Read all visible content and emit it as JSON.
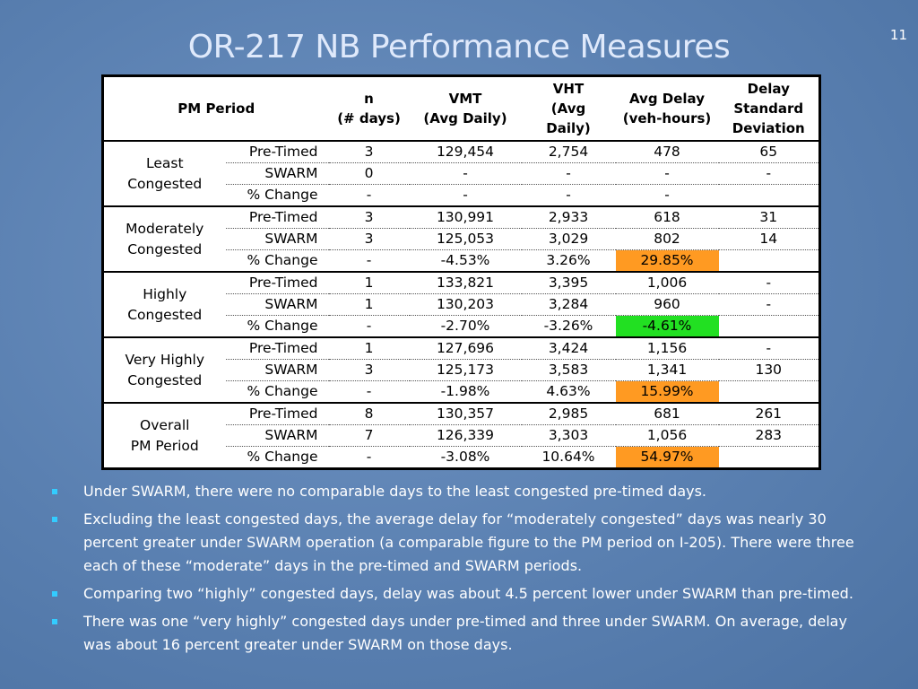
{
  "slide_number": "11",
  "title": "OR-217 NB Performance Measures",
  "table": {
    "header": [
      "PM Period",
      "n\n(# days)",
      "VMT\n(Avg Daily)",
      "VHT\n(Avg\nDaily)",
      "Avg Delay\n(veh-hours)",
      "Delay\nStandard\nDeviation"
    ],
    "groups": [
      {
        "label": "Least\nCongested",
        "rows": [
          [
            "Pre-Timed",
            "3",
            "129,454",
            "2,754",
            "478",
            "65"
          ],
          [
            "SWARM",
            "0",
            "-",
            "-",
            "-",
            "-"
          ],
          [
            "% Change",
            "-",
            "-",
            "-",
            "-"
          ]
        ]
      },
      {
        "label": "Moderately\nCongested",
        "rows": [
          [
            "Pre-Timed",
            "3",
            "130,991",
            "2,933",
            "618",
            "31"
          ],
          [
            "SWARM",
            "3",
            "125,053",
            "3,029",
            "802",
            "14"
          ],
          [
            "% Change",
            "-",
            "-4.53%",
            "3.26%",
            "29.85%"
          ]
        ]
      },
      {
        "label": "Highly\nCongested",
        "rows": [
          [
            "Pre-Timed",
            "1",
            "133,821",
            "3,395",
            "1,006",
            "-"
          ],
          [
            "SWARM",
            "1",
            "130,203",
            "3,284",
            "960",
            "-"
          ],
          [
            "% Change",
            "-",
            "-2.70%",
            "-3.26%",
            "-4.61%"
          ]
        ]
      },
      {
        "label": "Very Highly\nCongested",
        "rows": [
          [
            "Pre-Timed",
            "1",
            "127,696",
            "3,424",
            "1,156",
            "-"
          ],
          [
            "SWARM",
            "3",
            "125,173",
            "3,583",
            "1,341",
            "130"
          ],
          [
            "% Change",
            "-",
            "-1.98%",
            "4.63%",
            "15.99%"
          ]
        ]
      },
      {
        "label": "Overall\nPM Period",
        "rows": [
          [
            "Pre-Timed",
            "8",
            "130,357",
            "2,985",
            "681",
            "261"
          ],
          [
            "SWARM",
            "7",
            "126,339",
            "3,303",
            "1,056",
            "283"
          ],
          [
            "% Change",
            "-",
            "-3.08%",
            "10.64%",
            "54.97%"
          ]
        ]
      }
    ]
  },
  "bullets": [
    "Under SWARM, there were no comparable days to the least congested pre-timed days.",
    "Excluding the least congested days, the average delay for “moderately congested” days was nearly 30 percent greater under SWARM operation (a comparable figure to the PM period on I-205). There were three each of these “moderate” days in the pre-timed and SWARM periods.",
    "Comparing two “highly” congested days, delay was about 4.5 percent lower under SWARM than pre-timed.",
    "There was one “very highly” congested days under pre-timed and three under SWARM. On average, delay was about 16 percent greater under SWARM on those days."
  ]
}
